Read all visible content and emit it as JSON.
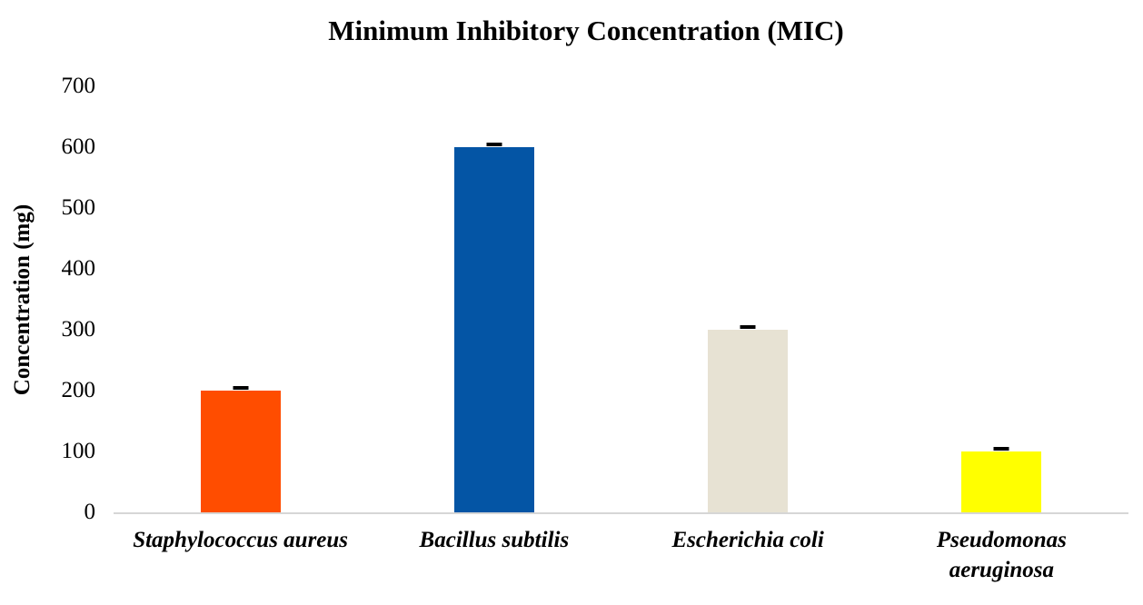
{
  "chart_data": {
    "type": "bar",
    "title": "Minimum Inhibitory Concentration (MIC)",
    "ylabel": "Concentration (mg)",
    "xlabel": "",
    "categories": [
      "Staphylococcus aureus",
      "Bacillus subtilis",
      "Escherichia coli",
      "Pseudomonas aeruginosa"
    ],
    "values": [
      200,
      600,
      300,
      100
    ],
    "error_values": [
      5,
      5,
      5,
      5
    ],
    "bar_colors": [
      "#FF4D00",
      "#0455A5",
      "#E7E2D3",
      "#FFFF00"
    ],
    "error_bar_color": "#000000",
    "axis_line_color": "#D6D6D6",
    "text_color": "#000000",
    "background_color": "#FFFFFF",
    "ylim": [
      0,
      700
    ],
    "yticks": [
      0,
      100,
      200,
      300,
      400,
      500,
      600,
      700
    ],
    "grid": false,
    "legend": "none"
  }
}
